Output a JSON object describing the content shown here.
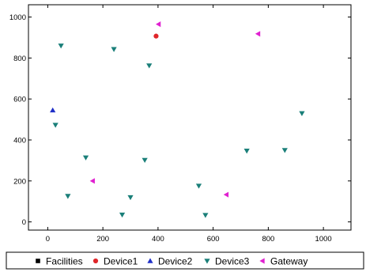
{
  "chart_data": {
    "type": "scatter",
    "title": "",
    "xlabel": "",
    "ylabel": "",
    "xlim": [
      -70,
      1100
    ],
    "ylim": [
      -40,
      1060
    ],
    "x_ticks": [
      "0",
      "200",
      "400",
      "600",
      "800",
      "1000"
    ],
    "y_ticks": [
      "0",
      "200",
      "400",
      "600",
      "800",
      "1000"
    ],
    "grid": false,
    "legend_position": "bottom",
    "series": [
      {
        "name": "Facilities",
        "marker": "square",
        "color": "#000000",
        "points": []
      },
      {
        "name": "Device1",
        "marker": "circle",
        "color": "#e0262a",
        "points": [
          [
            393,
            907
          ]
        ]
      },
      {
        "name": "Device2",
        "marker": "triangle-up",
        "color": "#1f2fc7",
        "points": [
          [
            18,
            545
          ]
        ]
      },
      {
        "name": "Device3",
        "marker": "triangle-down",
        "color": "#1a7f79",
        "points": [
          [
            48,
            860
          ],
          [
            240,
            843
          ],
          [
            368,
            763
          ],
          [
            28,
            473
          ],
          [
            138,
            314
          ],
          [
            352,
            302
          ],
          [
            73,
            126
          ],
          [
            300,
            120
          ],
          [
            270,
            35
          ],
          [
            548,
            176
          ],
          [
            572,
            33
          ],
          [
            722,
            347
          ],
          [
            860,
            350
          ],
          [
            922,
            530
          ]
        ]
      },
      {
        "name": "Gateway",
        "marker": "triangle-left",
        "color": "#e020d0",
        "points": [
          [
            402,
            965
          ],
          [
            763,
            918
          ],
          [
            163,
            200
          ],
          [
            648,
            133
          ]
        ]
      }
    ]
  }
}
